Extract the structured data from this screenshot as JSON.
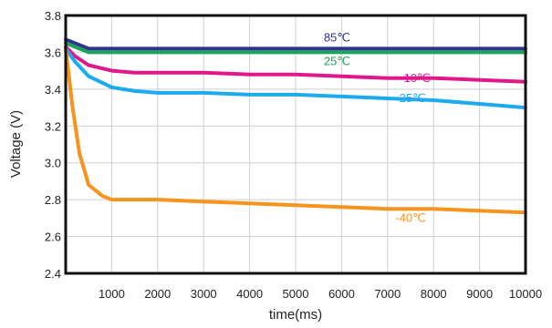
{
  "chart_data": {
    "type": "line",
    "title": "",
    "xlabel": "time(ms)",
    "ylabel": "Voltage (V)",
    "xlim": [
      0,
      10000
    ],
    "ylim": [
      2.4,
      3.8
    ],
    "grid": true,
    "legend": "inline labels",
    "x_ticks": [
      {
        "value": 1000,
        "label": "1000"
      },
      {
        "value": 2000,
        "label": "2000"
      },
      {
        "value": 3000,
        "label": "3000"
      },
      {
        "value": 4000,
        "label": "4000"
      },
      {
        "value": 5000,
        "label": "5000"
      },
      {
        "value": 6000,
        "label": "6000"
      },
      {
        "value": 7000,
        "label": "7000"
      },
      {
        "value": 8000,
        "label": "8000"
      },
      {
        "value": 9000,
        "label": "9000"
      },
      {
        "value": 10000,
        "label": "10000"
      }
    ],
    "y_ticks": [
      {
        "value": 2.4,
        "label": "2.4"
      },
      {
        "value": 2.6,
        "label": "2.6"
      },
      {
        "value": 2.8,
        "label": "2.8"
      },
      {
        "value": 3.0,
        "label": "3.0"
      },
      {
        "value": 3.2,
        "label": "3.2"
      },
      {
        "value": 3.4,
        "label": "3.4"
      },
      {
        "value": 3.6,
        "label": "3.6"
      },
      {
        "value": 3.8,
        "label": "3.8"
      }
    ],
    "series": [
      {
        "name": "85℃",
        "color": "#2d3591",
        "label_at": [
          5900,
          3.66
        ],
        "points": [
          [
            0,
            3.67
          ],
          [
            200,
            3.65
          ],
          [
            500,
            3.62
          ],
          [
            1000,
            3.62
          ],
          [
            2000,
            3.62
          ],
          [
            4000,
            3.62
          ],
          [
            6000,
            3.62
          ],
          [
            8000,
            3.62
          ],
          [
            10000,
            3.62
          ]
        ]
      },
      {
        "name": "25℃",
        "color": "#1fa35a",
        "label_at": [
          5900,
          3.53
        ],
        "points": [
          [
            0,
            3.65
          ],
          [
            200,
            3.63
          ],
          [
            500,
            3.6
          ],
          [
            1000,
            3.6
          ],
          [
            2000,
            3.6
          ],
          [
            4000,
            3.6
          ],
          [
            6000,
            3.6
          ],
          [
            8000,
            3.6
          ],
          [
            10000,
            3.6
          ]
        ]
      },
      {
        "name": "-10℃",
        "color": "#e0188c",
        "label_at": [
          7600,
          3.44
        ],
        "points": [
          [
            0,
            3.63
          ],
          [
            200,
            3.58
          ],
          [
            500,
            3.53
          ],
          [
            1000,
            3.5
          ],
          [
            1500,
            3.49
          ],
          [
            2000,
            3.49
          ],
          [
            3000,
            3.49
          ],
          [
            4000,
            3.48
          ],
          [
            5000,
            3.48
          ],
          [
            6000,
            3.47
          ],
          [
            7000,
            3.46
          ],
          [
            8000,
            3.46
          ],
          [
            9000,
            3.45
          ],
          [
            10000,
            3.44
          ]
        ]
      },
      {
        "name": "-25℃",
        "color": "#1eaaee",
        "label_at": [
          7500,
          3.33
        ],
        "points": [
          [
            0,
            3.62
          ],
          [
            200,
            3.55
          ],
          [
            500,
            3.47
          ],
          [
            1000,
            3.41
          ],
          [
            1500,
            3.39
          ],
          [
            2000,
            3.38
          ],
          [
            3000,
            3.38
          ],
          [
            4000,
            3.37
          ],
          [
            5000,
            3.37
          ],
          [
            6000,
            3.36
          ],
          [
            7000,
            3.35
          ],
          [
            8000,
            3.34
          ],
          [
            9000,
            3.32
          ],
          [
            10000,
            3.3
          ]
        ]
      },
      {
        "name": "-40℃",
        "color": "#f7941d",
        "label_at": [
          7500,
          2.68
        ],
        "points": [
          [
            0,
            3.62
          ],
          [
            150,
            3.3
          ],
          [
            300,
            3.05
          ],
          [
            500,
            2.88
          ],
          [
            800,
            2.82
          ],
          [
            1000,
            2.8
          ],
          [
            2000,
            2.8
          ],
          [
            3000,
            2.79
          ],
          [
            4000,
            2.78
          ],
          [
            5000,
            2.77
          ],
          [
            6000,
            2.76
          ],
          [
            7000,
            2.75
          ],
          [
            8000,
            2.75
          ],
          [
            9000,
            2.74
          ],
          [
            10000,
            2.73
          ]
        ]
      }
    ]
  }
}
